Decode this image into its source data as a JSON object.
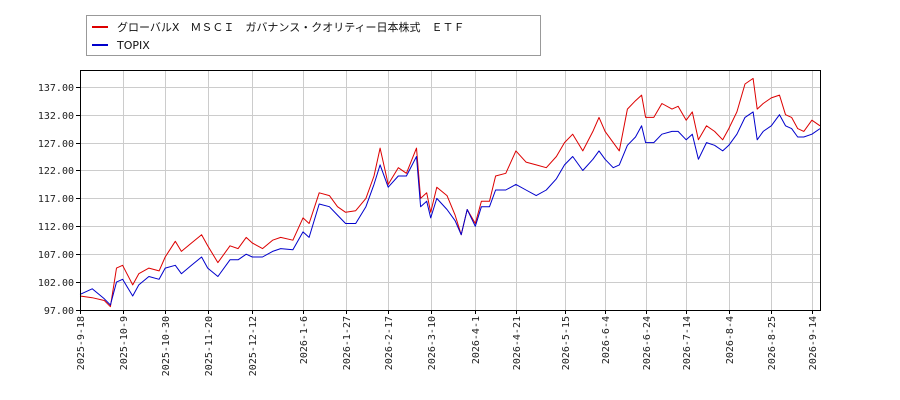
{
  "chart_data": {
    "type": "line",
    "title": "",
    "xlabel": "",
    "ylabel": "",
    "grid": true,
    "legend_position": "top-left",
    "x_range": [
      "2025-09-18",
      "2026-09-18"
    ],
    "ylim": [
      97,
      140
    ],
    "y_ticks": [
      "97.00",
      "102.00",
      "107.00",
      "112.00",
      "117.00",
      "122.00",
      "127.00",
      "132.00",
      "137.00"
    ],
    "x_ticks": [
      "2025-9-18",
      "2025-10-9",
      "2025-10-30",
      "2025-11-20",
      "2025-12-12",
      "2026-1-6",
      "2026-1-27",
      "2026-2-17",
      "2026-3-10",
      "2026-4-1",
      "2026-4-21",
      "2026-5-15",
      "2026-6-4",
      "2026-6-24",
      "2026-7-14",
      "2026-8-4",
      "2026-8-25",
      "2026-9-14"
    ],
    "series": [
      {
        "name": "グローバルX　ＭＳＣＩ　ガバナンス・クオリティー日本株式　ＥＴＦ",
        "color": "#dd0000",
        "points": [
          [
            "2025-09-18",
            99.5
          ],
          [
            "2025-09-24",
            99.2
          ],
          [
            "2025-09-30",
            98.7
          ],
          [
            "2025-10-03",
            97.6
          ],
          [
            "2025-10-06",
            104.5
          ],
          [
            "2025-10-09",
            105.0
          ],
          [
            "2025-10-14",
            101.5
          ],
          [
            "2025-10-17",
            103.5
          ],
          [
            "2025-10-22",
            104.5
          ],
          [
            "2025-10-27",
            104.0
          ],
          [
            "2025-10-30",
            106.5
          ],
          [
            "2025-11-04",
            109.3
          ],
          [
            "2025-11-07",
            107.5
          ],
          [
            "2025-11-12",
            109.0
          ],
          [
            "2025-11-17",
            110.5
          ],
          [
            "2025-11-20",
            108.5
          ],
          [
            "2025-11-25",
            105.5
          ],
          [
            "2025-12-01",
            108.5
          ],
          [
            "2025-12-05",
            108.0
          ],
          [
            "2025-12-09",
            110.0
          ],
          [
            "2025-12-12",
            109.0
          ],
          [
            "2025-12-17",
            108.0
          ],
          [
            "2025-12-22",
            109.5
          ],
          [
            "2025-12-26",
            110.0
          ],
          [
            "2026-01-01",
            109.5
          ],
          [
            "2026-01-06",
            113.5
          ],
          [
            "2026-01-09",
            112.5
          ],
          [
            "2026-01-14",
            118.0
          ],
          [
            "2026-01-19",
            117.5
          ],
          [
            "2026-01-23",
            115.5
          ],
          [
            "2026-01-27",
            114.5
          ],
          [
            "2026-02-01",
            114.8
          ],
          [
            "2026-02-06",
            117.0
          ],
          [
            "2026-02-10",
            121.0
          ],
          [
            "2026-02-13",
            126.0
          ],
          [
            "2026-02-17",
            119.5
          ],
          [
            "2026-02-22",
            122.5
          ],
          [
            "2026-02-26",
            121.5
          ],
          [
            "2026-03-03",
            126.0
          ],
          [
            "2026-03-05",
            117.0
          ],
          [
            "2026-03-08",
            118.0
          ],
          [
            "2026-03-10",
            114.5
          ],
          [
            "2026-03-13",
            119.0
          ],
          [
            "2026-03-18",
            117.5
          ],
          [
            "2026-03-22",
            114.0
          ],
          [
            "2026-03-25",
            110.5
          ],
          [
            "2026-03-28",
            115.0
          ],
          [
            "2026-04-01",
            112.5
          ],
          [
            "2026-04-04",
            116.5
          ],
          [
            "2026-04-08",
            116.5
          ],
          [
            "2026-04-11",
            121.0
          ],
          [
            "2026-04-16",
            121.5
          ],
          [
            "2026-04-21",
            125.5
          ],
          [
            "2026-04-26",
            123.5
          ],
          [
            "2026-05-01",
            123.0
          ],
          [
            "2026-05-06",
            122.5
          ],
          [
            "2026-05-11",
            124.5
          ],
          [
            "2026-05-15",
            127.0
          ],
          [
            "2026-05-19",
            128.5
          ],
          [
            "2026-05-24",
            125.5
          ],
          [
            "2026-05-29",
            129.0
          ],
          [
            "2026-06-01",
            131.5
          ],
          [
            "2026-06-04",
            129.0
          ],
          [
            "2026-06-08",
            127.0
          ],
          [
            "2026-06-11",
            125.5
          ],
          [
            "2026-06-15",
            133.0
          ],
          [
            "2026-06-19",
            134.5
          ],
          [
            "2026-06-22",
            135.5
          ],
          [
            "2026-06-24",
            131.5
          ],
          [
            "2026-06-28",
            131.5
          ],
          [
            "2026-07-02",
            134.0
          ],
          [
            "2026-07-07",
            133.0
          ],
          [
            "2026-07-10",
            133.5
          ],
          [
            "2026-07-14",
            131.0
          ],
          [
            "2026-07-17",
            132.5
          ],
          [
            "2026-07-20",
            127.5
          ],
          [
            "2026-07-24",
            130.0
          ],
          [
            "2026-07-28",
            129.0
          ],
          [
            "2026-08-01",
            127.5
          ],
          [
            "2026-08-04",
            129.5
          ],
          [
            "2026-08-08",
            132.5
          ],
          [
            "2026-08-12",
            137.5
          ],
          [
            "2026-08-16",
            138.5
          ],
          [
            "2026-08-18",
            133.0
          ],
          [
            "2026-08-21",
            134.0
          ],
          [
            "2026-08-25",
            135.0
          ],
          [
            "2026-08-29",
            135.5
          ],
          [
            "2026-09-01",
            132.0
          ],
          [
            "2026-09-04",
            131.5
          ],
          [
            "2026-09-07",
            129.5
          ],
          [
            "2026-09-10",
            129.0
          ],
          [
            "2026-09-14",
            131.0
          ],
          [
            "2026-09-18",
            130.0
          ]
        ]
      },
      {
        "name": "TOPIX",
        "color": "#0000cc",
        "points": [
          [
            "2025-09-18",
            99.8
          ],
          [
            "2025-09-24",
            100.8
          ],
          [
            "2025-09-30",
            99.0
          ],
          [
            "2025-10-03",
            97.9
          ],
          [
            "2025-10-06",
            102.0
          ],
          [
            "2025-10-09",
            102.5
          ],
          [
            "2025-10-14",
            99.5
          ],
          [
            "2025-10-17",
            101.5
          ],
          [
            "2025-10-22",
            103.0
          ],
          [
            "2025-10-27",
            102.5
          ],
          [
            "2025-10-30",
            104.5
          ],
          [
            "2025-11-04",
            105.0
          ],
          [
            "2025-11-07",
            103.5
          ],
          [
            "2025-11-12",
            105.0
          ],
          [
            "2025-11-17",
            106.5
          ],
          [
            "2025-11-20",
            104.5
          ],
          [
            "2025-11-25",
            103.0
          ],
          [
            "2025-12-01",
            106.0
          ],
          [
            "2025-12-05",
            106.0
          ],
          [
            "2025-12-09",
            107.0
          ],
          [
            "2025-12-12",
            106.5
          ],
          [
            "2025-12-17",
            106.5
          ],
          [
            "2025-12-22",
            107.5
          ],
          [
            "2025-12-26",
            108.0
          ],
          [
            "2026-01-01",
            107.8
          ],
          [
            "2026-01-06",
            111.0
          ],
          [
            "2026-01-09",
            110.0
          ],
          [
            "2026-01-14",
            116.0
          ],
          [
            "2026-01-19",
            115.5
          ],
          [
            "2026-01-23",
            114.0
          ],
          [
            "2026-01-27",
            112.5
          ],
          [
            "2026-02-01",
            112.5
          ],
          [
            "2026-02-06",
            115.5
          ],
          [
            "2026-02-10",
            119.5
          ],
          [
            "2026-02-13",
            123.0
          ],
          [
            "2026-02-17",
            119.0
          ],
          [
            "2026-02-22",
            121.0
          ],
          [
            "2026-02-26",
            121.0
          ],
          [
            "2026-03-03",
            124.5
          ],
          [
            "2026-03-05",
            115.5
          ],
          [
            "2026-03-08",
            116.5
          ],
          [
            "2026-03-10",
            113.5
          ],
          [
            "2026-03-13",
            117.0
          ],
          [
            "2026-03-18",
            115.0
          ],
          [
            "2026-03-22",
            113.0
          ],
          [
            "2026-03-25",
            110.5
          ],
          [
            "2026-03-28",
            115.0
          ],
          [
            "2026-04-01",
            112.0
          ],
          [
            "2026-04-04",
            115.5
          ],
          [
            "2026-04-08",
            115.5
          ],
          [
            "2026-04-11",
            118.5
          ],
          [
            "2026-04-16",
            118.5
          ],
          [
            "2026-04-21",
            119.5
          ],
          [
            "2026-04-26",
            118.5
          ],
          [
            "2026-05-01",
            117.5
          ],
          [
            "2026-05-06",
            118.5
          ],
          [
            "2026-05-11",
            120.5
          ],
          [
            "2026-05-15",
            123.0
          ],
          [
            "2026-05-19",
            124.5
          ],
          [
            "2026-05-24",
            122.0
          ],
          [
            "2026-05-29",
            124.0
          ],
          [
            "2026-06-01",
            125.5
          ],
          [
            "2026-06-04",
            124.0
          ],
          [
            "2026-06-08",
            122.5
          ],
          [
            "2026-06-11",
            123.0
          ],
          [
            "2026-06-15",
            126.5
          ],
          [
            "2026-06-19",
            128.0
          ],
          [
            "2026-06-22",
            130.0
          ],
          [
            "2026-06-24",
            127.0
          ],
          [
            "2026-06-28",
            127.0
          ],
          [
            "2026-07-02",
            128.5
          ],
          [
            "2026-07-07",
            129.0
          ],
          [
            "2026-07-10",
            129.0
          ],
          [
            "2026-07-14",
            127.5
          ],
          [
            "2026-07-17",
            128.5
          ],
          [
            "2026-07-20",
            124.0
          ],
          [
            "2026-07-24",
            127.0
          ],
          [
            "2026-07-28",
            126.5
          ],
          [
            "2026-08-01",
            125.5
          ],
          [
            "2026-08-04",
            126.5
          ],
          [
            "2026-08-08",
            128.5
          ],
          [
            "2026-08-12",
            131.5
          ],
          [
            "2026-08-16",
            132.5
          ],
          [
            "2026-08-18",
            127.5
          ],
          [
            "2026-08-21",
            129.0
          ],
          [
            "2026-08-25",
            130.0
          ],
          [
            "2026-08-29",
            132.0
          ],
          [
            "2026-09-01",
            130.0
          ],
          [
            "2026-09-04",
            129.5
          ],
          [
            "2026-09-07",
            128.0
          ],
          [
            "2026-09-10",
            128.0
          ],
          [
            "2026-09-14",
            128.5
          ],
          [
            "2026-09-18",
            129.5
          ]
        ]
      }
    ]
  }
}
